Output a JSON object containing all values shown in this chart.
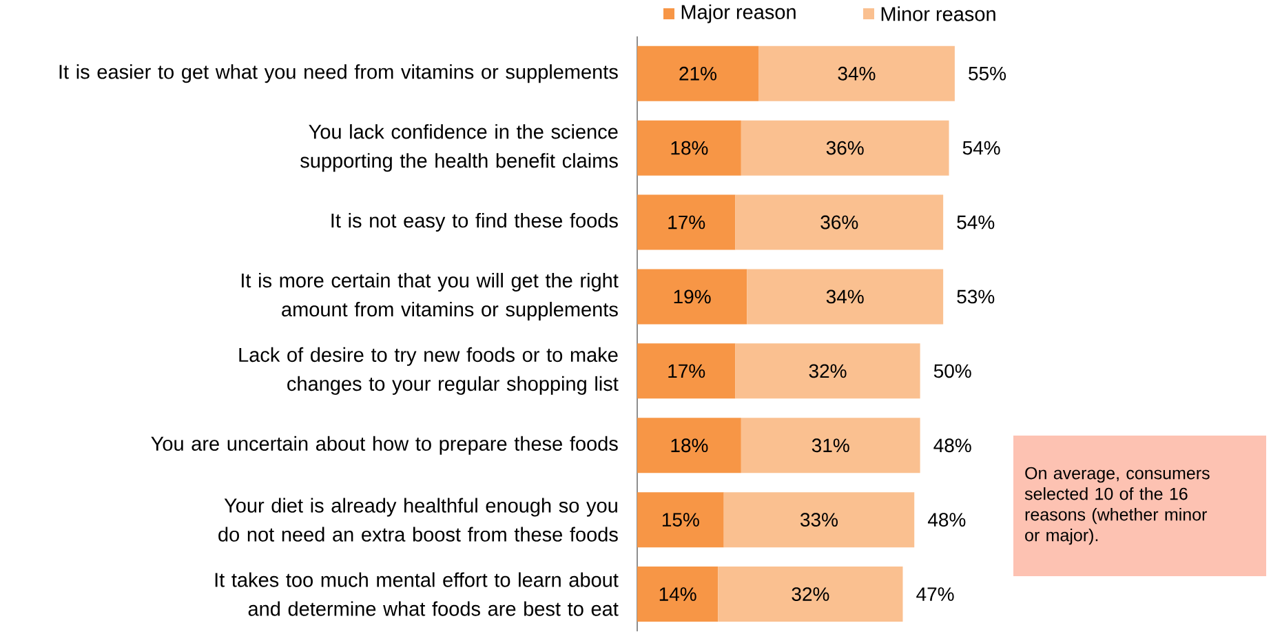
{
  "chart_data": {
    "type": "bar",
    "orientation": "horizontal",
    "stacked": true,
    "data_labels": true,
    "legend": "top",
    "grid": false,
    "categories": [
      "It is easier to get what you need from vitamins or supplements",
      "You lack confidence in the science supporting the health benefit claims",
      "It is not easy to find these foods",
      "It is more certain that you will get the right amount from vitamins or supplements",
      "Lack of desire to try new foods or to make changes to your regular shopping list",
      "You are uncertain about how to prepare these foods",
      "Your diet is already healthful enough so you do not need an extra boost from these foods",
      "It takes too much mental effort to learn about and determine what foods are best to eat"
    ],
    "series": [
      {
        "name": "Major reason",
        "color": "#f79646",
        "values": [
          21,
          18,
          17,
          19,
          17,
          18,
          15,
          14
        ],
        "value_labels": [
          "21%",
          "18%",
          "17%",
          "19%",
          "17%",
          "18%",
          "15%",
          "14%"
        ]
      },
      {
        "name": "Minor reason",
        "color": "#fac090",
        "values": [
          34,
          36,
          36,
          34,
          32,
          31,
          33,
          32
        ],
        "value_labels": [
          "34%",
          "36%",
          "36%",
          "34%",
          "32%",
          "31%",
          "33%",
          "32%"
        ]
      }
    ],
    "totals": [
      "55%",
      "54%",
      "54%",
      "53%",
      "50%",
      "48%",
      "48%",
      "47%"
    ],
    "annotations": [
      "On average, consumers selected 10 of the 16 reasons (whether minor or major)."
    ]
  }
}
